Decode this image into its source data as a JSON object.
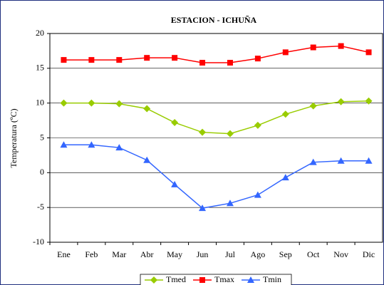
{
  "chart_data": {
    "type": "line",
    "title": "ESTACION - ICHUÑA",
    "ylabel": "Temperatura (ºC)",
    "categories": [
      "Ene",
      "Feb",
      "Mar",
      "Abr",
      "May",
      "Jun",
      "Jul",
      "Ago",
      "Sep",
      "Oct",
      "Nov",
      "Dic"
    ],
    "series": [
      {
        "name": "Tmed",
        "color": "#99cc00",
        "marker": "diamond",
        "values": [
          10.0,
          10.0,
          9.9,
          9.2,
          7.2,
          5.8,
          5.6,
          6.8,
          8.4,
          9.6,
          10.2,
          10.3
        ]
      },
      {
        "name": "Tmax",
        "color": "#ff0000",
        "marker": "square",
        "values": [
          16.2,
          16.2,
          16.2,
          16.5,
          16.5,
          15.8,
          15.8,
          16.4,
          17.3,
          18.0,
          18.2,
          17.3
        ]
      },
      {
        "name": "Tmin",
        "color": "#3366ff",
        "marker": "triangle",
        "values": [
          4.0,
          4.0,
          3.6,
          1.8,
          -1.7,
          -5.1,
          -4.4,
          -3.2,
          -0.7,
          1.5,
          1.7,
          1.7
        ]
      }
    ],
    "ylim": [
      -10,
      20
    ],
    "yticks": [
      -10,
      -5,
      0,
      5,
      10,
      15,
      20
    ],
    "grid": true,
    "legend": "bottom"
  }
}
